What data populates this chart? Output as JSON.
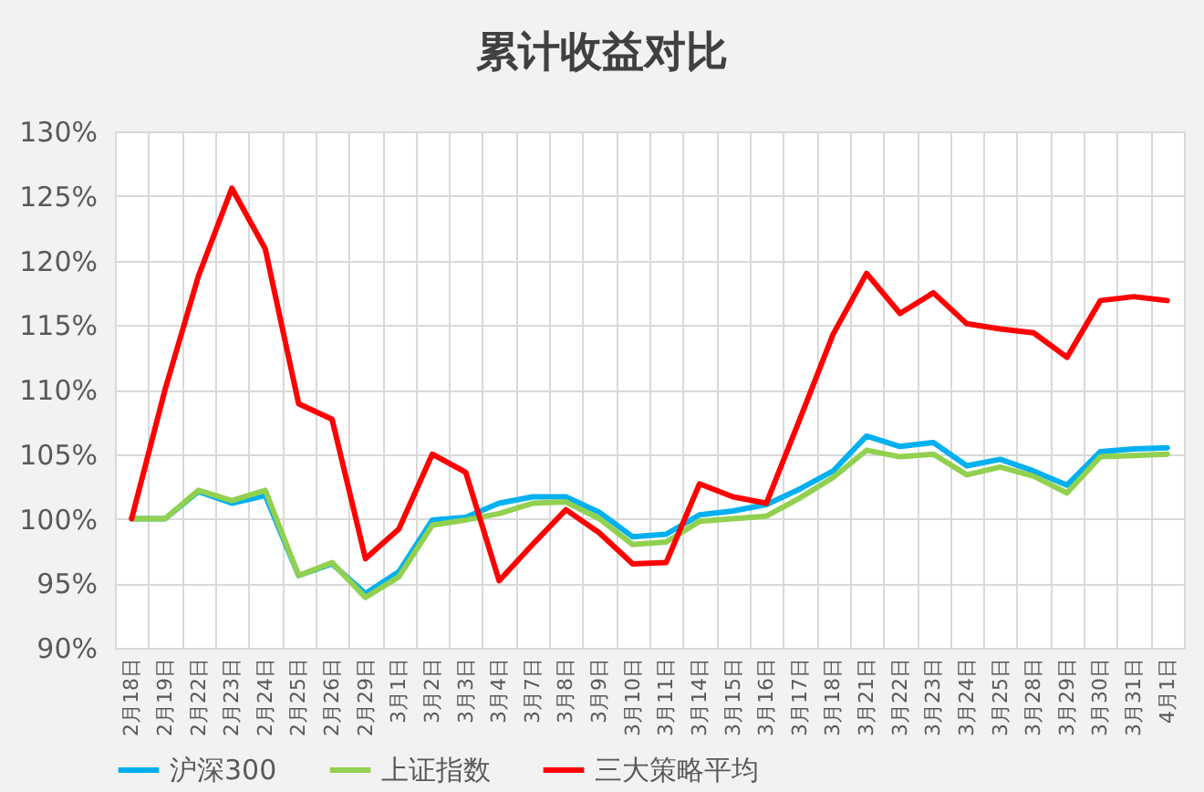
{
  "chart_data": {
    "type": "line",
    "title": "累计收益对比",
    "categories": [
      "2月18日",
      "2月19日",
      "2月22日",
      "2月23日",
      "2月24日",
      "2月25日",
      "2月26日",
      "2月29日",
      "3月1日",
      "3月2日",
      "3月3日",
      "3月4日",
      "3月7日",
      "3月8日",
      "3月9日",
      "3月10日",
      "3月11日",
      "3月14日",
      "3月15日",
      "3月16日",
      "3月17日",
      "3月18日",
      "3月21日",
      "3月22日",
      "3月23日",
      "3月24日",
      "3月25日",
      "3月28日",
      "3月29日",
      "3月30日",
      "3月31日",
      "4月1日"
    ],
    "series": [
      {
        "name": "沪深300",
        "color": "#00b0f0",
        "values": [
          100,
          100,
          102.1,
          101.2,
          101.8,
          95.6,
          96.5,
          94.2,
          95.9,
          99.9,
          100.1,
          101.2,
          101.7,
          101.7,
          100.5,
          98.6,
          98.8,
          100.3,
          100.6,
          101.1,
          102.3,
          103.7,
          106.4,
          105.6,
          105.9,
          104.1,
          104.6,
          103.7,
          102.6,
          105.2,
          105.4,
          105.5
        ]
      },
      {
        "name": "上证指数",
        "color": "#92d050",
        "values": [
          100,
          100,
          102.2,
          101.4,
          102.2,
          95.6,
          96.6,
          93.9,
          95.5,
          99.5,
          99.9,
          100.4,
          101.2,
          101.3,
          100.0,
          98.0,
          98.2,
          99.8,
          100.0,
          100.2,
          101.6,
          103.2,
          105.3,
          104.8,
          105.0,
          103.4,
          104.0,
          103.3,
          102.0,
          104.8,
          104.9,
          105.0
        ]
      },
      {
        "name": "三大策略平均",
        "color": "#ff0000",
        "values": [
          100,
          110.0,
          118.8,
          125.6,
          120.9,
          108.9,
          107.7,
          96.9,
          99.2,
          105.0,
          103.6,
          95.2,
          98.0,
          100.7,
          98.9,
          96.5,
          96.6,
          102.7,
          101.7,
          101.2,
          107.7,
          114.3,
          119.0,
          115.9,
          117.5,
          115.1,
          114.7,
          114.4,
          112.5,
          116.9,
          117.2,
          116.9
        ]
      }
    ],
    "ylim": [
      90,
      130
    ],
    "yticks": [
      {
        "value": 90,
        "label": "90%"
      },
      {
        "value": 95,
        "label": "95%"
      },
      {
        "value": 100,
        "label": "100%"
      },
      {
        "value": 105,
        "label": "105%"
      },
      {
        "value": 110,
        "label": "110%"
      },
      {
        "value": 115,
        "label": "115%"
      },
      {
        "value": 120,
        "label": "120%"
      },
      {
        "value": 125,
        "label": "125%"
      },
      {
        "value": 130,
        "label": "130%"
      }
    ],
    "grid": true,
    "legend": "bottom"
  }
}
